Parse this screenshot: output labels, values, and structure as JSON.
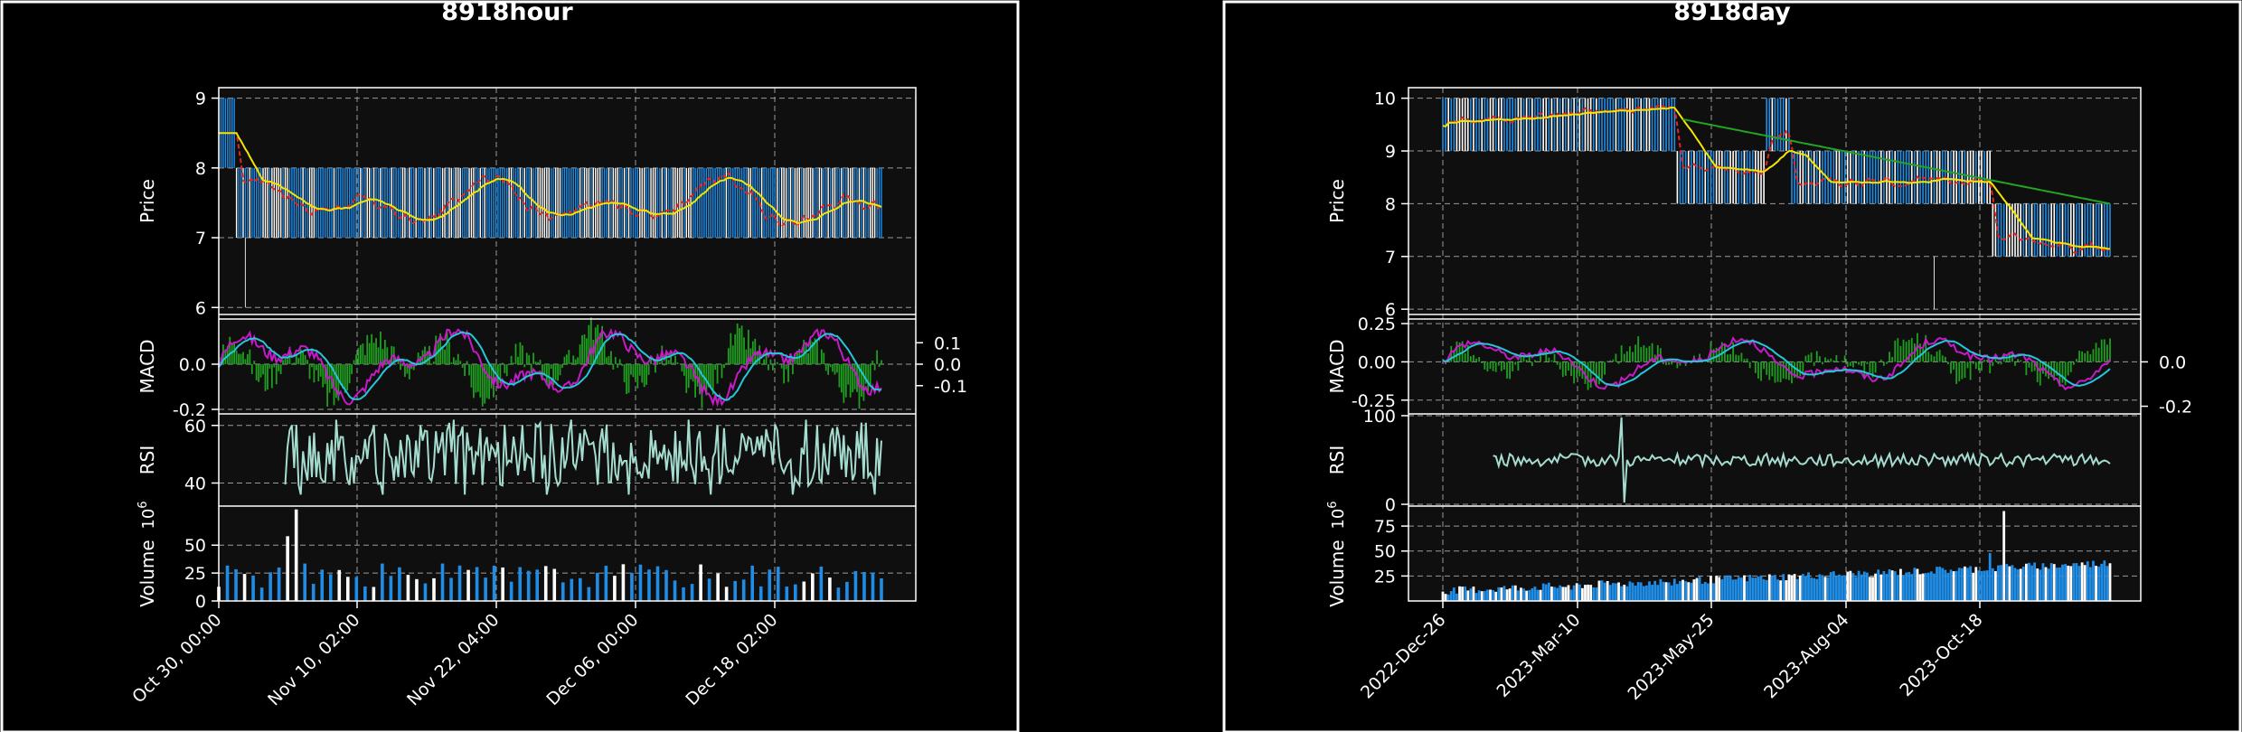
{
  "colors": {
    "background": "#000000",
    "panel_face": "#0f0f0f",
    "frame": "#ffffff",
    "grid": "#9a9a9a",
    "up_candle": "#ffffff",
    "down_candle": "#1f8de6",
    "ma_fast": "#e8241c",
    "ma_mid": "#f4e500",
    "ma_slow": "#22a522",
    "macd_line": "#c61ac6",
    "signal_line": "#26c6da",
    "macd_hist": "#1f9e1f",
    "rsi": "#a5dcd0",
    "volume_up": "#ffffff",
    "volume_down": "#1f8de6"
  },
  "chart_data": [
    {
      "type": "candlestick",
      "title": "8918hour",
      "panels": {
        "price": {
          "ylabel": "Price",
          "yticks": [
            6,
            7,
            8,
            9
          ],
          "ylim": [
            5.9,
            9.15
          ],
          "moving_averages": [
            "ma_fast",
            "ma_mid"
          ],
          "series": [
            {
              "phase": "start",
              "price_range": [
                8,
                9
              ]
            },
            {
              "phase": "range",
              "price_range": [
                7,
                8
              ],
              "mean": 7.5
            }
          ]
        },
        "macd": {
          "ylabel": "MACD",
          "left_yticks": [
            "0.0",
            "-0.2"
          ],
          "right_yticks": [
            "0.1",
            "0.0",
            "-0.1"
          ],
          "ylim": [
            -0.22,
            0.2
          ]
        },
        "rsi": {
          "ylabel": "RSI",
          "yticks": [
            40,
            60
          ],
          "ylim": [
            32,
            64
          ]
        },
        "volume": {
          "ylabel": "Volume",
          "exponent": "10^6",
          "yticks": [
            0,
            25,
            50
          ],
          "ylim": [
            0,
            85
          ],
          "peak": 82
        }
      },
      "x_ticks": [
        "Oct 30, 00:00",
        "Nov 10, 02:00",
        "Nov 22, 04:00",
        "Dec 06, 00:00",
        "Dec 18, 02:00"
      ],
      "grid": true
    },
    {
      "type": "candlestick",
      "title": "8918day",
      "panels": {
        "price": {
          "ylabel": "Price",
          "yticks": [
            6,
            7,
            8,
            9,
            10
          ],
          "ylim": [
            5.9,
            10.2
          ],
          "moving_averages": [
            "ma_fast",
            "ma_mid",
            "ma_slow"
          ],
          "series": [
            {
              "phase": "2022-Dec-26 to 2023-Apr",
              "price_range": [
                9,
                10
              ],
              "peak_ma": 9.9
            },
            {
              "phase": "2023-Apr to 2023-May",
              "price_range": [
                8,
                9
              ],
              "ma": 8.7
            },
            {
              "phase": "2023-Jun",
              "price_range": [
                9,
                10
              ],
              "ma": 9.3
            },
            {
              "phase": "2023-Jul to 2023-Oct",
              "price_range": [
                8,
                9
              ],
              "ma": 8.4
            },
            {
              "phase": "2023-Nov to end",
              "price_range": [
                7,
                8
              ],
              "ma": 7.2
            }
          ],
          "slow_ma_range": [
            9.6,
            8.0
          ]
        },
        "macd": {
          "ylabel": "MACD",
          "left_yticks": [
            "0.25",
            "0.00",
            "-0.25"
          ],
          "right_yticks": [
            "0.0",
            "-0.2"
          ],
          "ylim": [
            -0.34,
            0.28
          ]
        },
        "rsi": {
          "ylabel": "RSI",
          "yticks": [
            0,
            100
          ],
          "ylim": [
            -2,
            102
          ]
        },
        "volume": {
          "ylabel": "Volume",
          "exponent": "10^6",
          "yticks": [
            25,
            50,
            75
          ],
          "ylim": [
            0,
            95
          ],
          "peak": 90
        }
      },
      "x_ticks": [
        "2022-Dec-26",
        "2023-Mar-10",
        "2023-May-25",
        "2023-Aug-04",
        "2023-Oct-18"
      ],
      "grid": true
    }
  ]
}
